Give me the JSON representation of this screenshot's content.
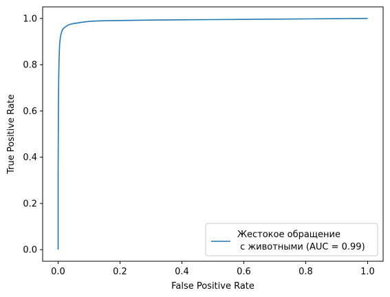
{
  "chart_data": {
    "type": "line",
    "xlabel": "False Positive Rate",
    "ylabel": "True Positive Rate",
    "xlim": [
      -0.05,
      1.05
    ],
    "ylim": [
      -0.05,
      1.05
    ],
    "x_ticks": [
      "0.0",
      "0.2",
      "0.4",
      "0.6",
      "0.8",
      "1.0"
    ],
    "y_ticks": [
      "0.0",
      "0.2",
      "0.4",
      "0.6",
      "0.8",
      "1.0"
    ],
    "grid": false,
    "legend_position": "lower-right",
    "series": [
      {
        "name_line1": "Жестокое обращение",
        "name_line2": " с животными (AUC = 0.99)",
        "color": "#1f77b4",
        "x": [
          0.0,
          0.0,
          0.001,
          0.002,
          0.003,
          0.004,
          0.005,
          0.007,
          0.009,
          0.012,
          0.016,
          0.02,
          0.025,
          0.03,
          0.04,
          0.05,
          0.06,
          0.08,
          0.1,
          0.12,
          0.15,
          0.2,
          0.3,
          0.4,
          0.5,
          0.6,
          0.7,
          0.8,
          0.9,
          1.0
        ],
        "y": [
          0.0,
          0.35,
          0.62,
          0.75,
          0.82,
          0.86,
          0.89,
          0.915,
          0.93,
          0.945,
          0.955,
          0.96,
          0.965,
          0.97,
          0.975,
          0.978,
          0.98,
          0.984,
          0.987,
          0.989,
          0.99,
          0.991,
          0.993,
          0.994,
          0.995,
          0.996,
          0.997,
          0.998,
          0.999,
          1.0
        ]
      }
    ]
  }
}
